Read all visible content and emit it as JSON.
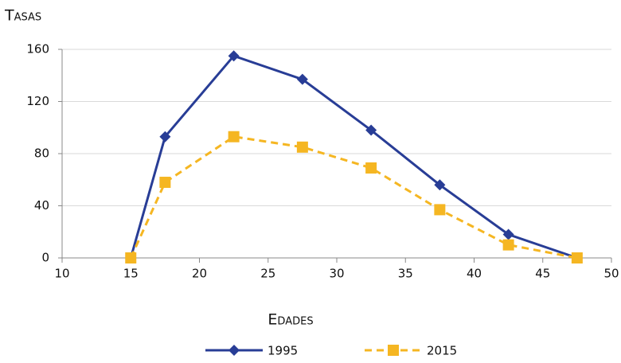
{
  "chart_data": {
    "type": "line",
    "y_label": "Tasas",
    "x_label": "Edades",
    "x": [
      15,
      17.5,
      22.5,
      27.5,
      32.5,
      37.5,
      42.5,
      47.5
    ],
    "series": [
      {
        "name": "1995",
        "color": "#283d96",
        "marker": "diamond",
        "dash": false,
        "values": [
          0,
          93,
          155,
          137,
          98,
          56,
          18,
          0
        ]
      },
      {
        "name": "2015",
        "color": "#f5b622",
        "marker": "square",
        "dash": true,
        "values": [
          0,
          58,
          93,
          85,
          69,
          37,
          10,
          0
        ]
      }
    ],
    "xlim": [
      10,
      50
    ],
    "xticks": [
      10,
      15,
      20,
      25,
      30,
      35,
      40,
      45,
      50
    ],
    "ylim": [
      0,
      160
    ],
    "yticks": [
      0,
      40,
      80,
      120,
      160
    ],
    "grid": true,
    "legend": "bottom"
  }
}
